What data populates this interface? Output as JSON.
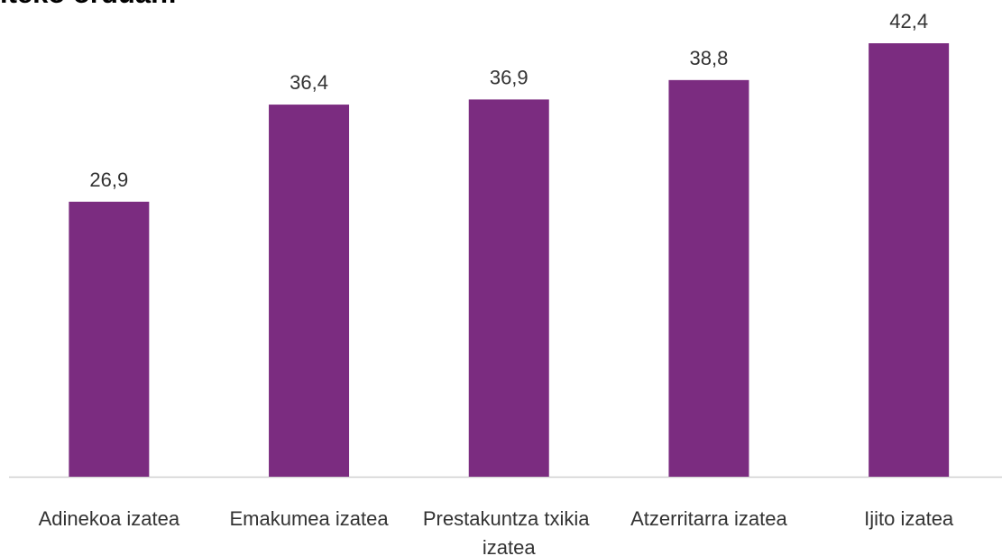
{
  "chart_data": {
    "type": "bar",
    "title": "iteko orduan:",
    "categories": [
      "Adinekoa izatea",
      "Emakumea izatea",
      "Prestakuntza txikia izatea",
      "Atzerritarra izatea",
      "Ijito izatea"
    ],
    "values": [
      26.9,
      36.4,
      36.9,
      38.8,
      42.4
    ],
    "value_labels": [
      "26,9",
      "36,4",
      "36,9",
      "38,8",
      "42,4"
    ],
    "color": "#7b2c80"
  }
}
